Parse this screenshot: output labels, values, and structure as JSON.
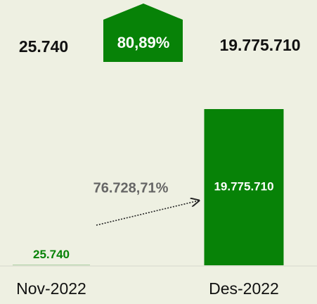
{
  "chart_data": {
    "type": "bar",
    "categories": [
      "Nov-2022",
      "Des-2022"
    ],
    "values": [
      25740,
      19775710
    ],
    "value_labels": [
      "25.740",
      "19.775.710"
    ],
    "color": "#078207",
    "ratio_label": "80,89%",
    "growth_label": "76.728,71%"
  }
}
